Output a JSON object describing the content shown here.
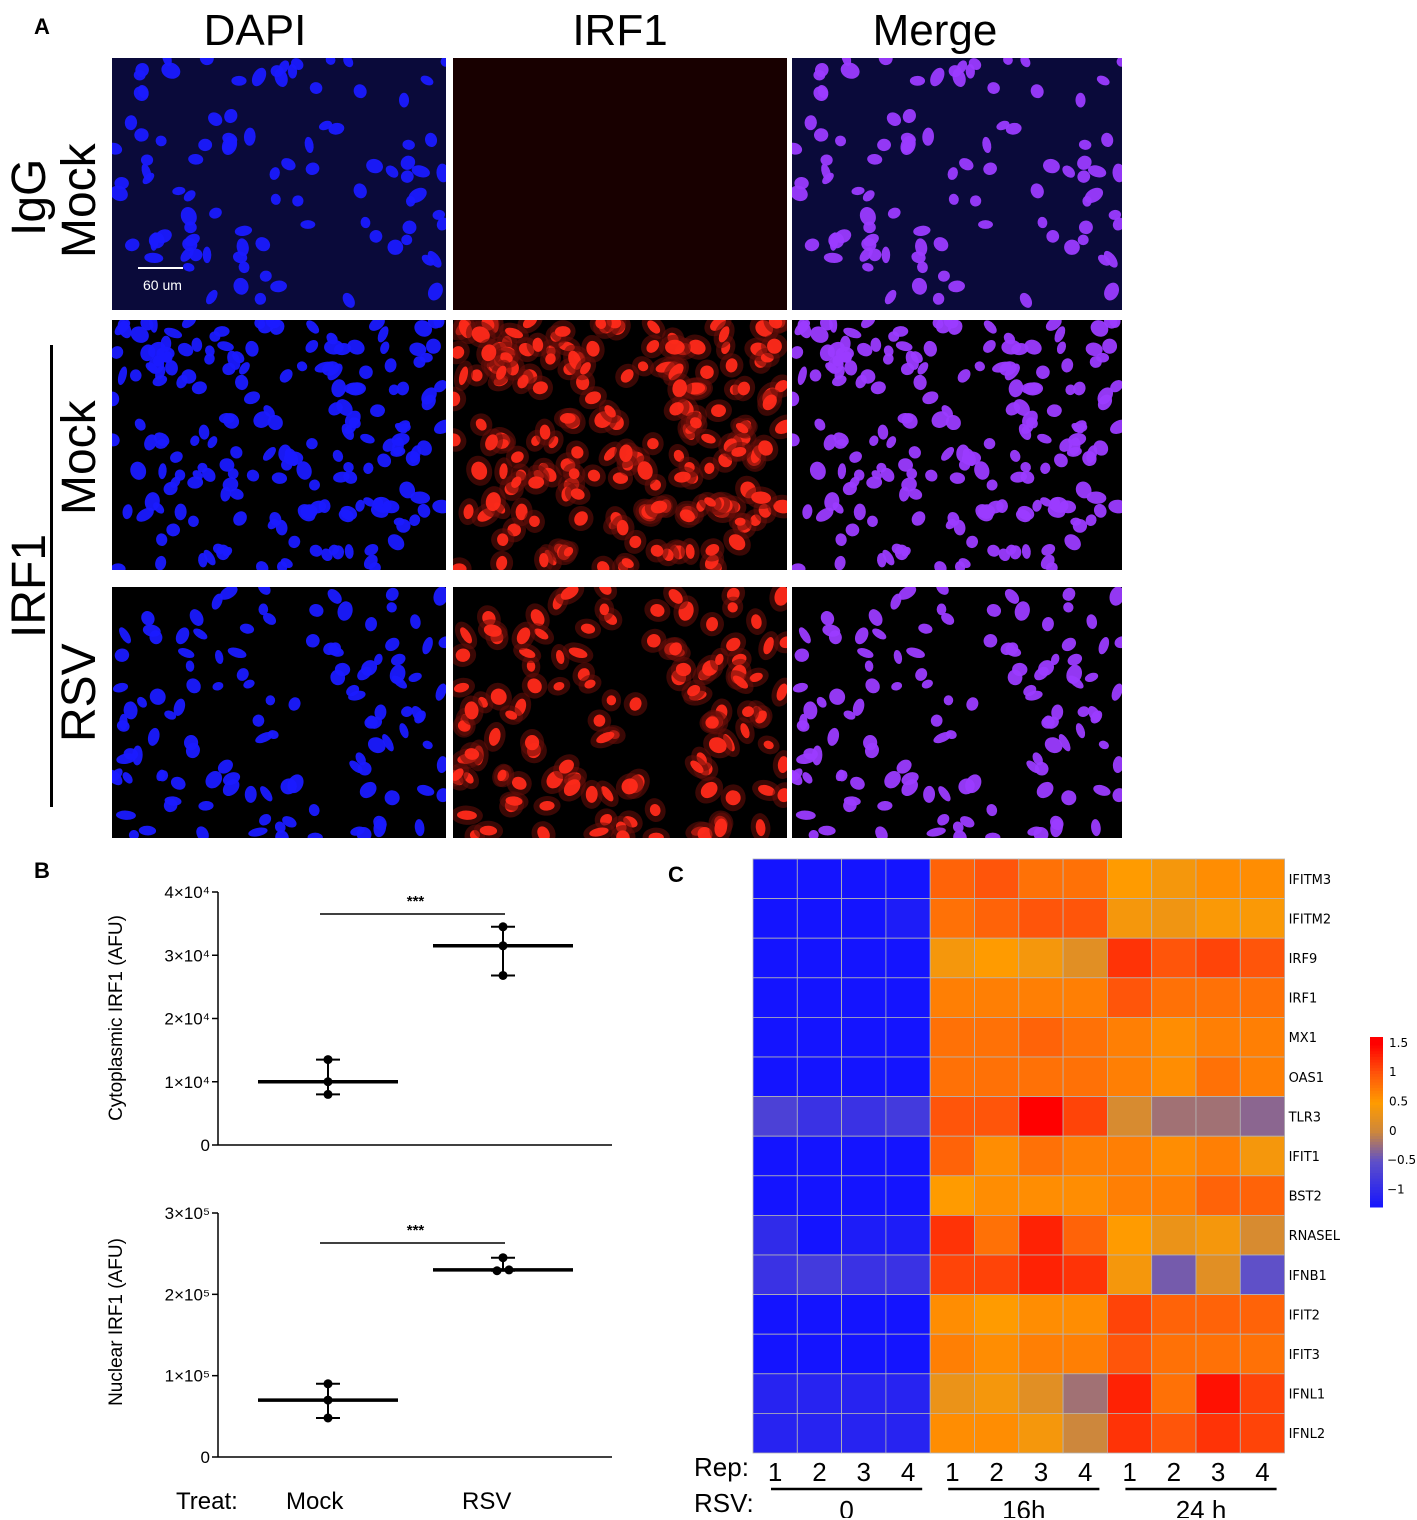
{
  "panel_labels": {
    "a": "A",
    "b": "B",
    "c": "C"
  },
  "panel_a": {
    "columns": [
      "DAPI",
      "IRF1",
      "Merge"
    ],
    "row_labels": {
      "igg": "IgG",
      "mock1": "Mock",
      "irf1": "IRF1",
      "mock2": "Mock",
      "rsv": "RSV"
    },
    "scale_bar": "60 um",
    "colors": {
      "dapi": "#1a1aff",
      "irf1": "#ff2a1a",
      "merge": "#9b3bff"
    }
  },
  "chart_data": [
    {
      "type": "scatter",
      "title": "",
      "xlabel": "Treat:",
      "ylabel": "Cytoplasmic IRF1 (AFU)",
      "categories": [
        "Mock",
        "RSV"
      ],
      "ylim": [
        0,
        40000
      ],
      "yticks": [
        "0",
        "1×10⁴",
        "2×10⁴",
        "3×10⁴",
        "4×10⁴"
      ],
      "series": [
        {
          "name": "Mock",
          "points": [
            8000,
            10000,
            13500
          ],
          "mean": 10000,
          "range": [
            8000,
            13500
          ]
        },
        {
          "name": "RSV",
          "points": [
            26800,
            31500,
            34500
          ],
          "mean": 31500,
          "range": [
            26800,
            34500
          ]
        }
      ],
      "significance": "***"
    },
    {
      "type": "scatter",
      "title": "",
      "xlabel": "Treat:",
      "ylabel": "Nuclear IRF1 (AFU)",
      "categories": [
        "Mock",
        "RSV"
      ],
      "ylim": [
        0,
        300000
      ],
      "yticks": [
        "0",
        "1×10⁵",
        "2×10⁵",
        "3×10⁵"
      ],
      "series": [
        {
          "name": "Mock",
          "points": [
            48000,
            70000,
            90000
          ],
          "mean": 70000,
          "range": [
            48000,
            90000
          ]
        },
        {
          "name": "RSV",
          "points": [
            229000,
            230000,
            245000
          ],
          "mean": 230000,
          "range": [
            229000,
            245000
          ]
        }
      ],
      "significance": "***"
    },
    {
      "type": "heatmap",
      "title": "",
      "rows": [
        "IFITM3",
        "IFITM2",
        "IRF9",
        "IRF1",
        "MX1",
        "OAS1",
        "TLR3",
        "IFIT1",
        "BST2",
        "RNASEL",
        "IFNB1",
        "IFIT2",
        "IFIT3",
        "IFNL1",
        "IFNL2"
      ],
      "rep_label": "Rep:",
      "rsv_label": "RSV:",
      "replicates": [
        "1",
        "2",
        "3",
        "4",
        "1",
        "2",
        "3",
        "4",
        "1",
        "2",
        "3",
        "4"
      ],
      "groups": [
        "0",
        "16h",
        "24 h"
      ],
      "values": [
        [
          -1.3,
          -1.3,
          -1.3,
          -1.3,
          0.9,
          1.0,
          0.8,
          0.8,
          0.5,
          0.4,
          0.6,
          0.6
        ],
        [
          -1.3,
          -1.3,
          -1.3,
          -1.2,
          0.8,
          0.9,
          1.0,
          1.0,
          0.4,
          0.35,
          0.45,
          0.45
        ],
        [
          -1.3,
          -1.3,
          -1.3,
          -1.3,
          0.4,
          0.5,
          0.4,
          0.2,
          1.2,
          1.0,
          1.1,
          1.0
        ],
        [
          -1.3,
          -1.3,
          -1.3,
          -1.3,
          0.7,
          0.7,
          0.7,
          0.7,
          1.0,
          0.8,
          0.8,
          0.8
        ],
        [
          -1.3,
          -1.3,
          -1.3,
          -1.3,
          0.8,
          0.8,
          0.9,
          0.8,
          0.7,
          0.6,
          0.7,
          0.7
        ],
        [
          -1.3,
          -1.3,
          -1.3,
          -1.3,
          0.8,
          0.8,
          0.8,
          0.8,
          0.7,
          0.6,
          0.8,
          0.7
        ],
        [
          -0.7,
          -0.9,
          -0.9,
          -0.8,
          1.0,
          1.0,
          1.5,
          1.1,
          0.1,
          -0.2,
          -0.2,
          -0.3
        ],
        [
          -1.3,
          -1.3,
          -1.3,
          -1.3,
          0.9,
          0.6,
          0.8,
          0.7,
          0.7,
          0.6,
          0.7,
          0.4
        ],
        [
          -1.3,
          -1.3,
          -1.3,
          -1.3,
          0.5,
          0.6,
          0.6,
          0.6,
          0.7,
          0.7,
          0.9,
          0.9
        ],
        [
          -1.0,
          -1.3,
          -1.2,
          -1.2,
          1.2,
          0.8,
          1.3,
          0.9,
          0.5,
          0.3,
          0.4,
          0.1
        ],
        [
          -0.9,
          -0.8,
          -0.9,
          -0.9,
          1.1,
          1.1,
          1.3,
          1.2,
          0.4,
          -0.4,
          0.2,
          -0.5
        ],
        [
          -1.3,
          -1.3,
          -1.3,
          -1.3,
          0.6,
          0.5,
          0.6,
          0.6,
          1.1,
          0.9,
          0.9,
          0.9
        ],
        [
          -1.3,
          -1.3,
          -1.3,
          -1.3,
          0.7,
          0.6,
          0.7,
          0.7,
          1.0,
          0.8,
          0.8,
          0.8
        ],
        [
          -1.1,
          -1.1,
          -1.1,
          -1.1,
          0.3,
          0.4,
          0.2,
          -0.2,
          1.3,
          0.8,
          1.4,
          1.1
        ],
        [
          -1.1,
          -1.1,
          -1.1,
          -1.1,
          0.6,
          0.6,
          0.4,
          0.0,
          1.2,
          1.0,
          1.2,
          1.1
        ]
      ],
      "legend_ticks": [
        "1.5",
        "1",
        "0.5",
        "0",
        "−0.5",
        "−1"
      ],
      "legend_values": [
        1.5,
        1,
        0.5,
        0,
        -0.5,
        -1
      ],
      "vmin": -1.3,
      "vmax": 1.6
    }
  ]
}
